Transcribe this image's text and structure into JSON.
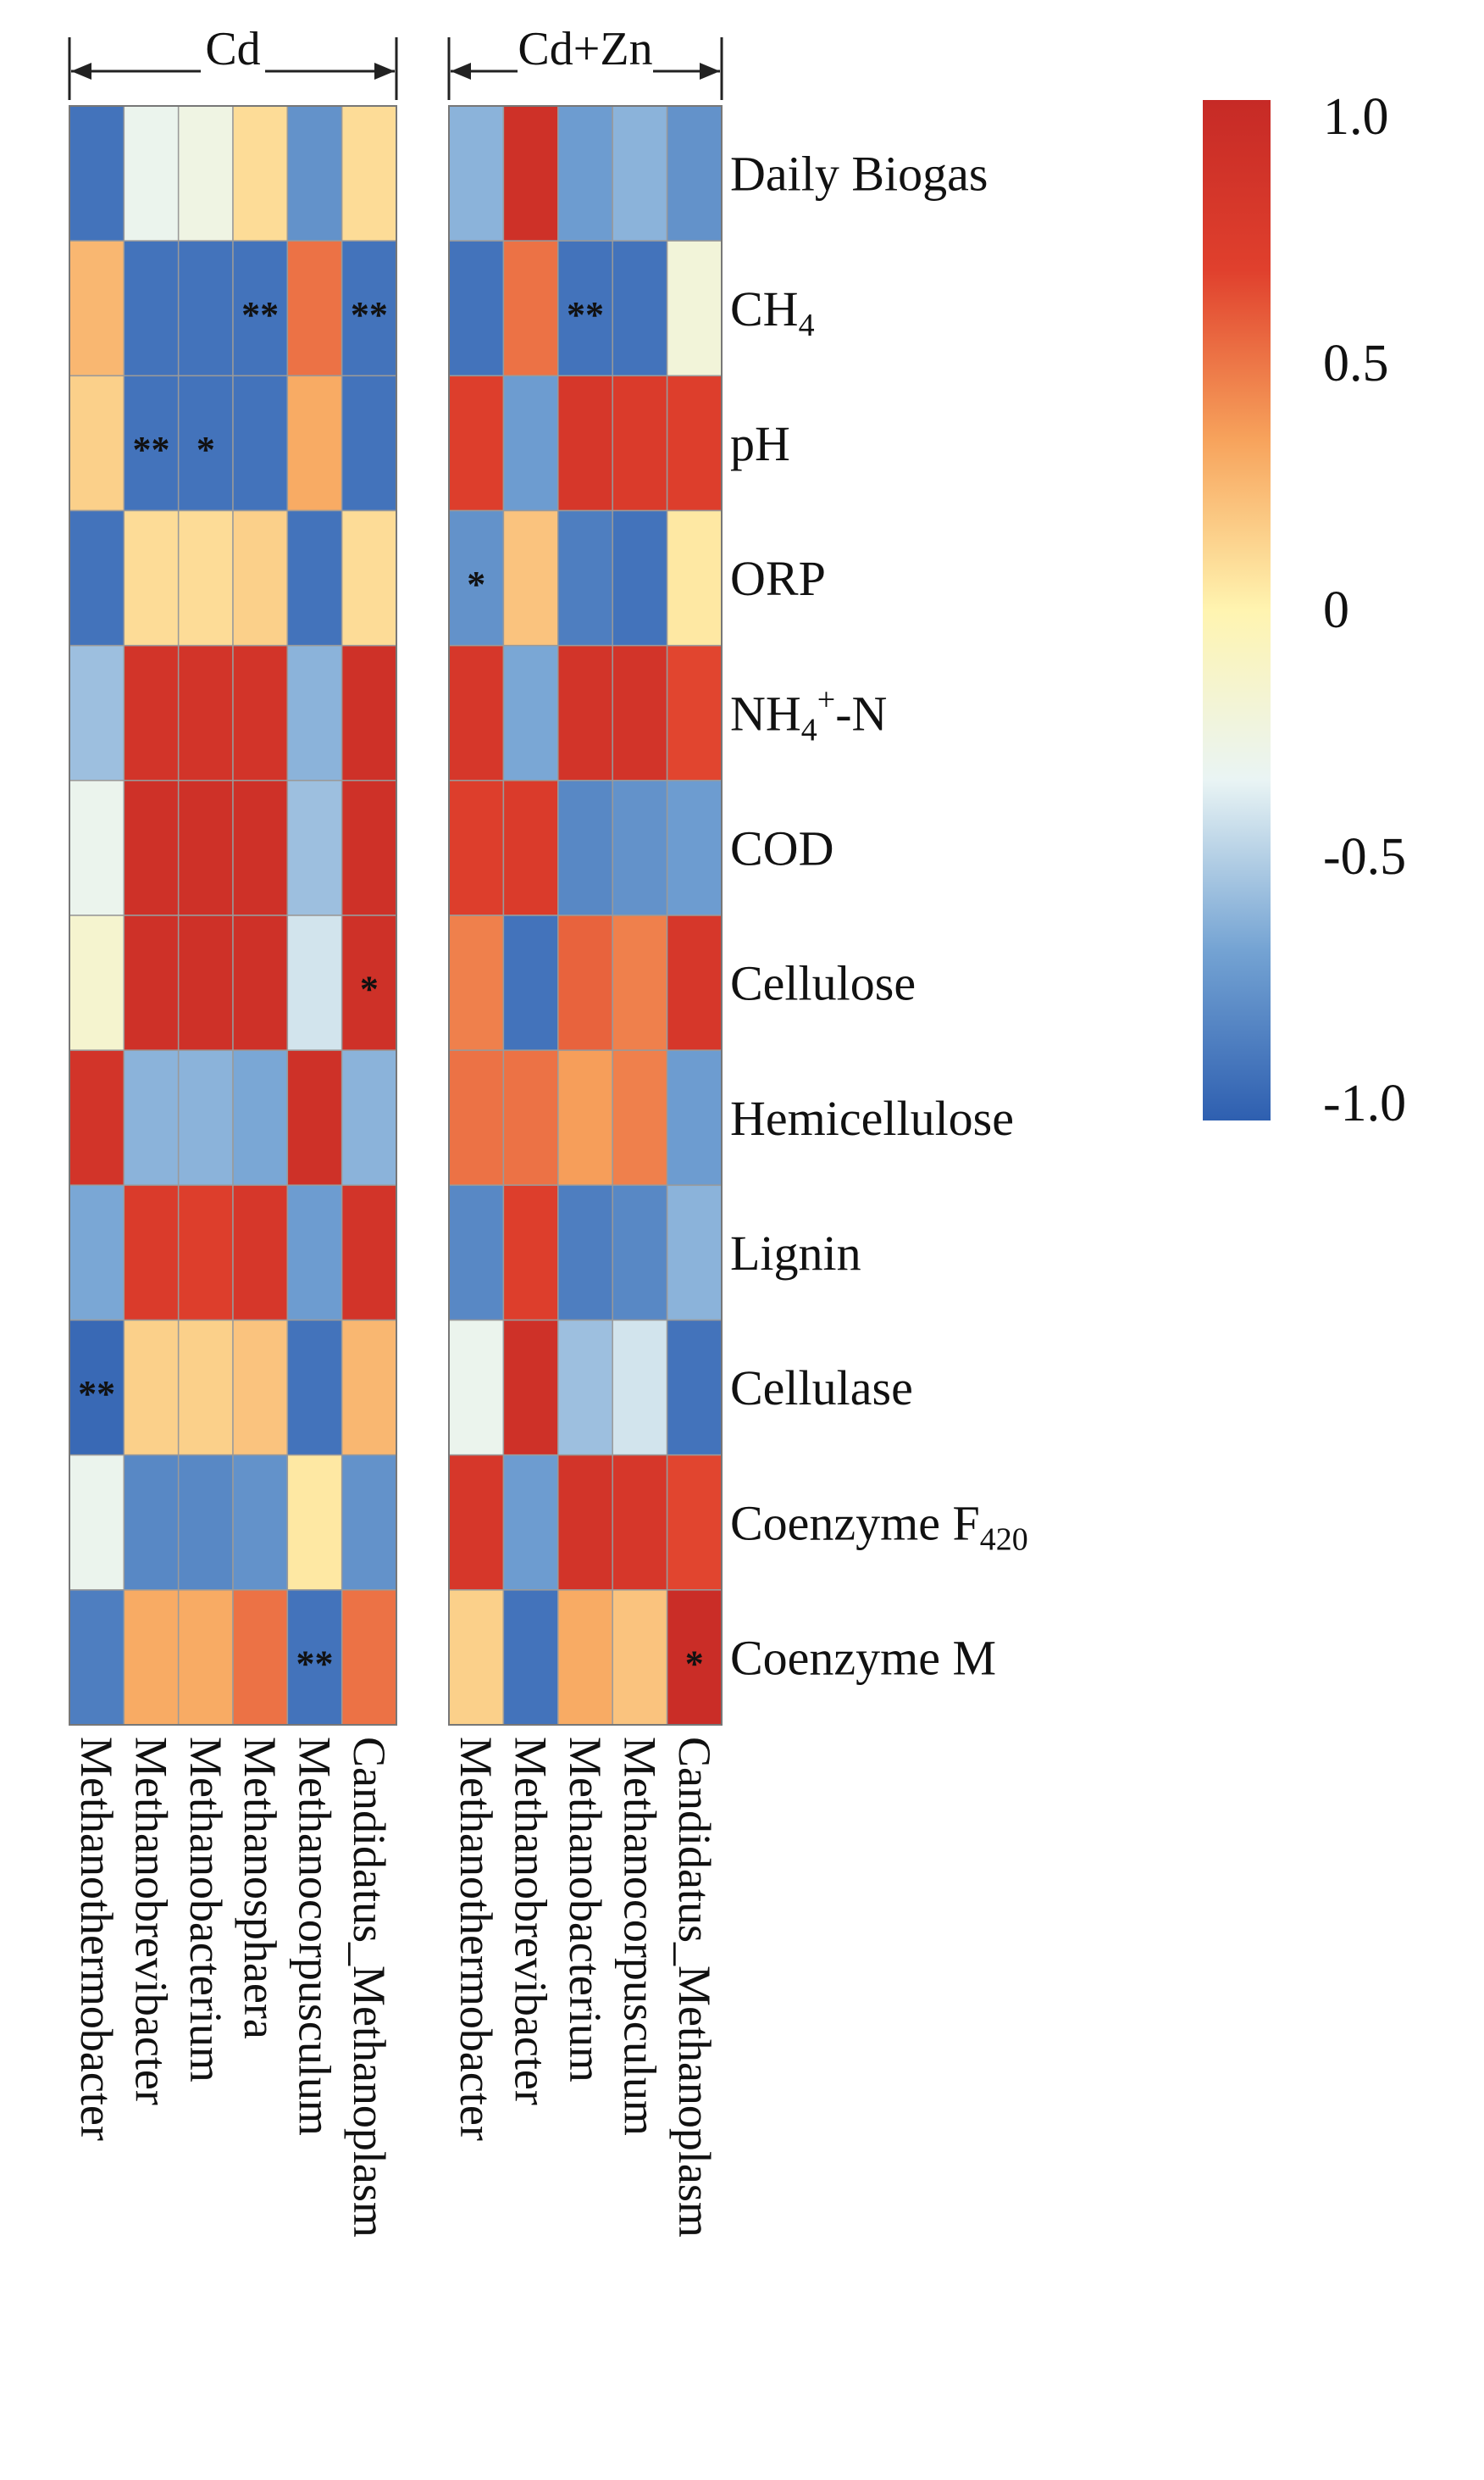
{
  "chart_data": {
    "type": "heatmap",
    "title": "",
    "colorbar": {
      "min": -1.0,
      "max": 1.0,
      "ticks": [
        "1.0",
        "0.5",
        "0",
        "-0.5",
        "-1.0"
      ],
      "colors": [
        "#2e5fb0",
        "#74a3d3",
        "#e9f4f4",
        "#fff4b0",
        "#f7a35c",
        "#e0402d",
        "#c62a26"
      ]
    },
    "rows": [
      {
        "key": "daily_biogas",
        "parts": [
          {
            "t": "Daily Biogas"
          }
        ]
      },
      {
        "key": "ch4",
        "parts": [
          {
            "t": "CH"
          },
          {
            "t": "4",
            "sub": true
          }
        ]
      },
      {
        "key": "ph",
        "parts": [
          {
            "t": "pH"
          }
        ]
      },
      {
        "key": "orp",
        "parts": [
          {
            "t": "ORP"
          }
        ]
      },
      {
        "key": "nh4n",
        "parts": [
          {
            "t": "NH"
          },
          {
            "t": "4",
            "sub": true
          },
          {
            "t": "+",
            "sup": true
          },
          {
            "t": "-N"
          }
        ]
      },
      {
        "key": "cod",
        "parts": [
          {
            "t": "COD"
          }
        ]
      },
      {
        "key": "cellulose",
        "parts": [
          {
            "t": "Cellulose"
          }
        ]
      },
      {
        "key": "hemicellulose",
        "parts": [
          {
            "t": "Hemicellulose"
          }
        ]
      },
      {
        "key": "lignin",
        "parts": [
          {
            "t": "Lignin"
          }
        ]
      },
      {
        "key": "cellulase",
        "parts": [
          {
            "t": "Cellulase"
          }
        ]
      },
      {
        "key": "coenzyme_f420",
        "parts": [
          {
            "t": "Coenzyme  F"
          },
          {
            "t": "420",
            "sub": true
          }
        ]
      },
      {
        "key": "coenzyme_m",
        "parts": [
          {
            "t": "Coenzyme  M"
          }
        ]
      }
    ],
    "panels": [
      {
        "name": "Cd",
        "columns": [
          "Methanothermobacter",
          "Methanobrevibacter",
          "Methanobacterium",
          "Methanosphaera",
          "Methanocorpusculum",
          "Candidatus_Methanoplasm"
        ],
        "values": [
          [
            -0.9,
            -0.3,
            -0.25,
            0.1,
            -0.75,
            0.1
          ],
          [
            0.25,
            -0.9,
            -0.9,
            -0.9,
            0.5,
            -0.9
          ],
          [
            0.15,
            -0.9,
            -0.9,
            -0.9,
            0.3,
            -0.9
          ],
          [
            -0.9,
            0.1,
            0.1,
            0.15,
            -0.9,
            0.1
          ],
          [
            -0.55,
            0.85,
            0.85,
            0.85,
            -0.6,
            0.9
          ],
          [
            -0.3,
            0.9,
            0.9,
            0.9,
            -0.55,
            0.9
          ],
          [
            -0.15,
            0.9,
            0.9,
            0.9,
            -0.4,
            0.9
          ],
          [
            0.85,
            -0.6,
            -0.6,
            -0.65,
            0.9,
            -0.6
          ],
          [
            -0.65,
            0.75,
            0.7,
            0.8,
            -0.7,
            0.85
          ],
          [
            -0.95,
            0.15,
            0.15,
            0.2,
            -0.9,
            0.25
          ],
          [
            -0.3,
            -0.8,
            -0.8,
            -0.75,
            0.05,
            -0.75
          ],
          [
            -0.85,
            0.3,
            0.3,
            0.5,
            -0.9,
            0.5
          ]
        ],
        "stars": [
          [
            "",
            "",
            "",
            "",
            "",
            ""
          ],
          [
            "",
            "",
            "",
            "**",
            "",
            "**"
          ],
          [
            "",
            "**",
            "*",
            "",
            "",
            ""
          ],
          [
            "",
            "",
            "",
            "",
            "",
            ""
          ],
          [
            "",
            "",
            "",
            "",
            "",
            ""
          ],
          [
            "",
            "",
            "",
            "",
            "",
            ""
          ],
          [
            "",
            "",
            "",
            "",
            "",
            "*"
          ],
          [
            "",
            "",
            "",
            "",
            "",
            ""
          ],
          [
            "",
            "",
            "",
            "",
            "",
            ""
          ],
          [
            "**",
            "",
            "",
            "",
            "",
            ""
          ],
          [
            "",
            "",
            "",
            "",
            "",
            ""
          ],
          [
            "",
            "",
            "",
            "",
            "**",
            ""
          ]
        ]
      },
      {
        "name": "Cd+Zn",
        "columns": [
          "Methanothermobacter",
          "Methanobrevibacter",
          "Methanobacterium",
          "Methanocorpusculum",
          "Candidatus_Methanoplasm"
        ],
        "values": [
          [
            -0.6,
            0.9,
            -0.7,
            -0.6,
            -0.75
          ],
          [
            -0.9,
            0.5,
            -0.9,
            -0.9,
            -0.2
          ],
          [
            0.7,
            -0.7,
            0.8,
            0.75,
            0.7
          ],
          [
            -0.75,
            0.2,
            -0.85,
            -0.9,
            0.05
          ],
          [
            0.8,
            -0.65,
            0.85,
            0.85,
            0.65
          ],
          [
            0.7,
            0.75,
            -0.8,
            -0.75,
            -0.7
          ],
          [
            0.45,
            -0.9,
            0.55,
            0.45,
            0.8
          ],
          [
            0.5,
            0.5,
            0.35,
            0.45,
            -0.7
          ],
          [
            -0.8,
            0.7,
            -0.85,
            -0.8,
            -0.6
          ],
          [
            -0.3,
            0.9,
            -0.55,
            -0.4,
            -0.9
          ],
          [
            0.8,
            -0.7,
            0.85,
            0.8,
            0.65
          ],
          [
            0.15,
            -0.9,
            0.3,
            0.2,
            0.95
          ]
        ],
        "stars": [
          [
            "",
            "",
            "",
            "",
            ""
          ],
          [
            "",
            "",
            "**",
            "",
            ""
          ],
          [
            "",
            "",
            "",
            "",
            ""
          ],
          [
            "*",
            "",
            "",
            "",
            ""
          ],
          [
            "",
            "",
            "",
            "",
            ""
          ],
          [
            "",
            "",
            "",
            "",
            ""
          ],
          [
            "",
            "",
            "",
            "",
            ""
          ],
          [
            "",
            "",
            "",
            "",
            ""
          ],
          [
            "",
            "",
            "",
            "",
            ""
          ],
          [
            "",
            "",
            "",
            "",
            ""
          ],
          [
            "",
            "",
            "",
            "",
            ""
          ],
          [
            "",
            "",
            "",
            "",
            "*"
          ]
        ]
      }
    ]
  }
}
